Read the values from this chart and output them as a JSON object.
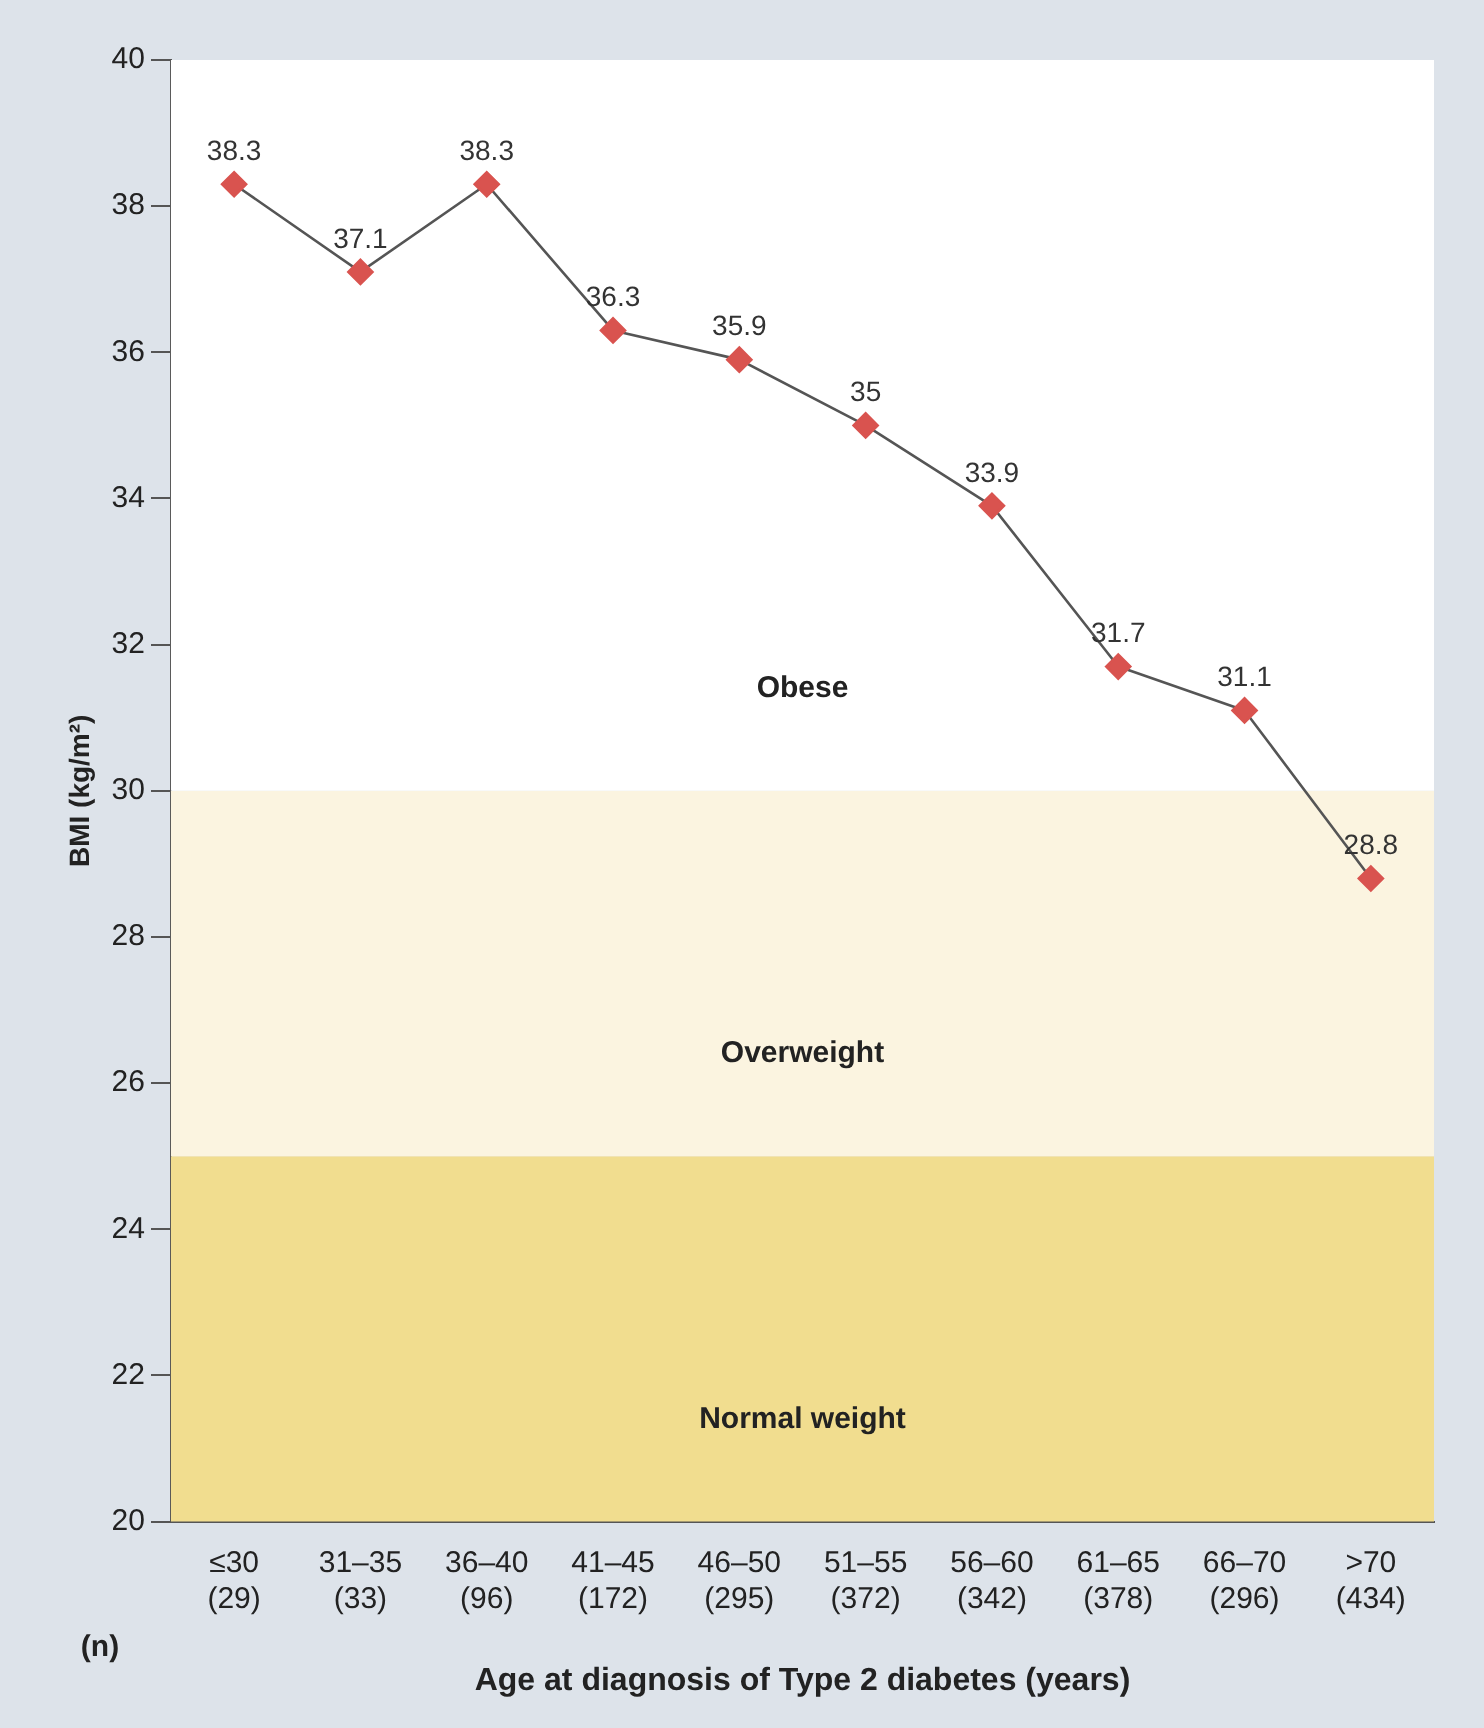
{
  "chart_data": {
    "type": "line",
    "xlabel": "Age at diagnosis of Type 2 diabetes (years)",
    "ylabel": "BMI (kg/m²)",
    "categories": [
      "≤30\n(29)",
      "31–35\n(33)",
      "36–40\n(96)",
      "41–45\n(172)",
      "46–50\n(295)",
      "51–55\n(372)",
      "56–60\n(342)",
      "61–65\n(378)",
      "66–70\n(296)",
      ">70\n(434)"
    ],
    "series": [
      {
        "color": "#d9534f",
        "values": [
          38.3,
          37.1,
          38.3,
          36.3,
          35.9,
          35,
          33.9,
          31.7,
          31.1,
          28.8
        ]
      }
    ],
    "ylim": [
      20,
      40
    ],
    "yticks": [
      20,
      22,
      24,
      26,
      28,
      30,
      32,
      34,
      36,
      38,
      40
    ],
    "bands": [
      {
        "axis": "y",
        "from": 20,
        "to": 25,
        "label": "Normal weight",
        "color": "#f1dd8f"
      },
      {
        "axis": "y",
        "from": 25,
        "to": 30,
        "label": "Overweight",
        "color": "#fbf4e0"
      },
      {
        "axis": "y",
        "from": 30,
        "to": 40,
        "label": "Obese",
        "color": "#ffffff"
      }
    ],
    "annotations": [
      "(n)"
    ],
    "data_labels": true,
    "marker": "diamond",
    "line_style": "solid",
    "grid": false,
    "legend": false
  }
}
